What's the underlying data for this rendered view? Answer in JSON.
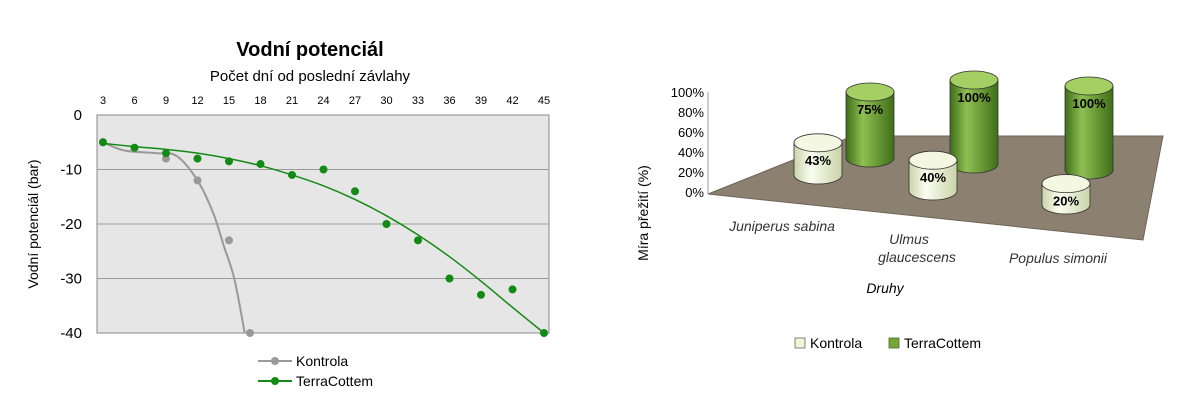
{
  "chart_data": [
    {
      "type": "line",
      "title": "Vodní potenciál",
      "xlabel": "Počet dní od poslední závlahy",
      "ylabel": "Vodní potenciál (bar)",
      "x_ticks": [
        3,
        6,
        9,
        12,
        15,
        18,
        21,
        24,
        27,
        30,
        33,
        36,
        39,
        42,
        45
      ],
      "y_ticks": [
        0,
        -10,
        -20,
        -30,
        -40
      ],
      "xlim": [
        3,
        45
      ],
      "ylim": [
        -40,
        0
      ],
      "x_axis_position": "top",
      "grid": true,
      "legend_position": "bottom",
      "series": [
        {
          "name": "Kontrola",
          "color": "#999999",
          "x": [
            3,
            9,
            12,
            15,
            17
          ],
          "y": [
            -5,
            -8,
            -12,
            -23,
            -40
          ],
          "curve": [
            [
              3,
              -5
            ],
            [
              5,
              -6.5
            ],
            [
              8,
              -7
            ],
            [
              10,
              -7.5
            ],
            [
              12,
              -12
            ],
            [
              13.5,
              -18
            ],
            [
              14.5,
              -24
            ],
            [
              15.5,
              -30
            ],
            [
              16.5,
              -40
            ]
          ]
        },
        {
          "name": "TerraCottem",
          "color": "#138a13",
          "x": [
            3,
            6,
            9,
            12,
            15,
            18,
            21,
            24,
            27,
            30,
            33,
            36,
            39,
            42,
            45
          ],
          "y": [
            -5,
            -6,
            -7,
            -8,
            -8.5,
            -9,
            -11,
            -10,
            -14,
            -20,
            -23,
            -30,
            -33,
            -32,
            -40
          ],
          "curve": [
            [
              3,
              -5.2
            ],
            [
              6,
              -5.8
            ],
            [
              9,
              -6.3
            ],
            [
              12,
              -7
            ],
            [
              15,
              -8
            ],
            [
              18,
              -9.3
            ],
            [
              21,
              -11
            ],
            [
              24,
              -13
            ],
            [
              27,
              -15.5
            ],
            [
              30,
              -18.5
            ],
            [
              33,
              -22
            ],
            [
              36,
              -26
            ],
            [
              39,
              -30.5
            ],
            [
              42,
              -35.3
            ],
            [
              45,
              -40
            ]
          ]
        }
      ]
    },
    {
      "type": "bar",
      "subtype": "3d-cylinder",
      "xlabel": "Druhy",
      "ylabel": "Míra přežití (%)",
      "y_ticks": [
        "100%",
        "80%",
        "60%",
        "40%",
        "20%",
        "0%"
      ],
      "ylim": [
        0,
        100
      ],
      "categories": [
        "Juniperus sabina",
        "Ulmus glaucescens",
        "Populus simonii"
      ],
      "legend_position": "bottom",
      "series": [
        {
          "name": "Kontrola",
          "color": "#f0f5d8",
          "values": [
            43,
            40,
            20
          ],
          "labels": [
            "43%",
            "40%",
            "20%"
          ]
        },
        {
          "name": "TerraCottem",
          "color": "#76a63a",
          "values": [
            75,
            100,
            100
          ],
          "labels": [
            "75%",
            "100%",
            "100%"
          ]
        }
      ],
      "floor_color": "#8c8070"
    }
  ]
}
